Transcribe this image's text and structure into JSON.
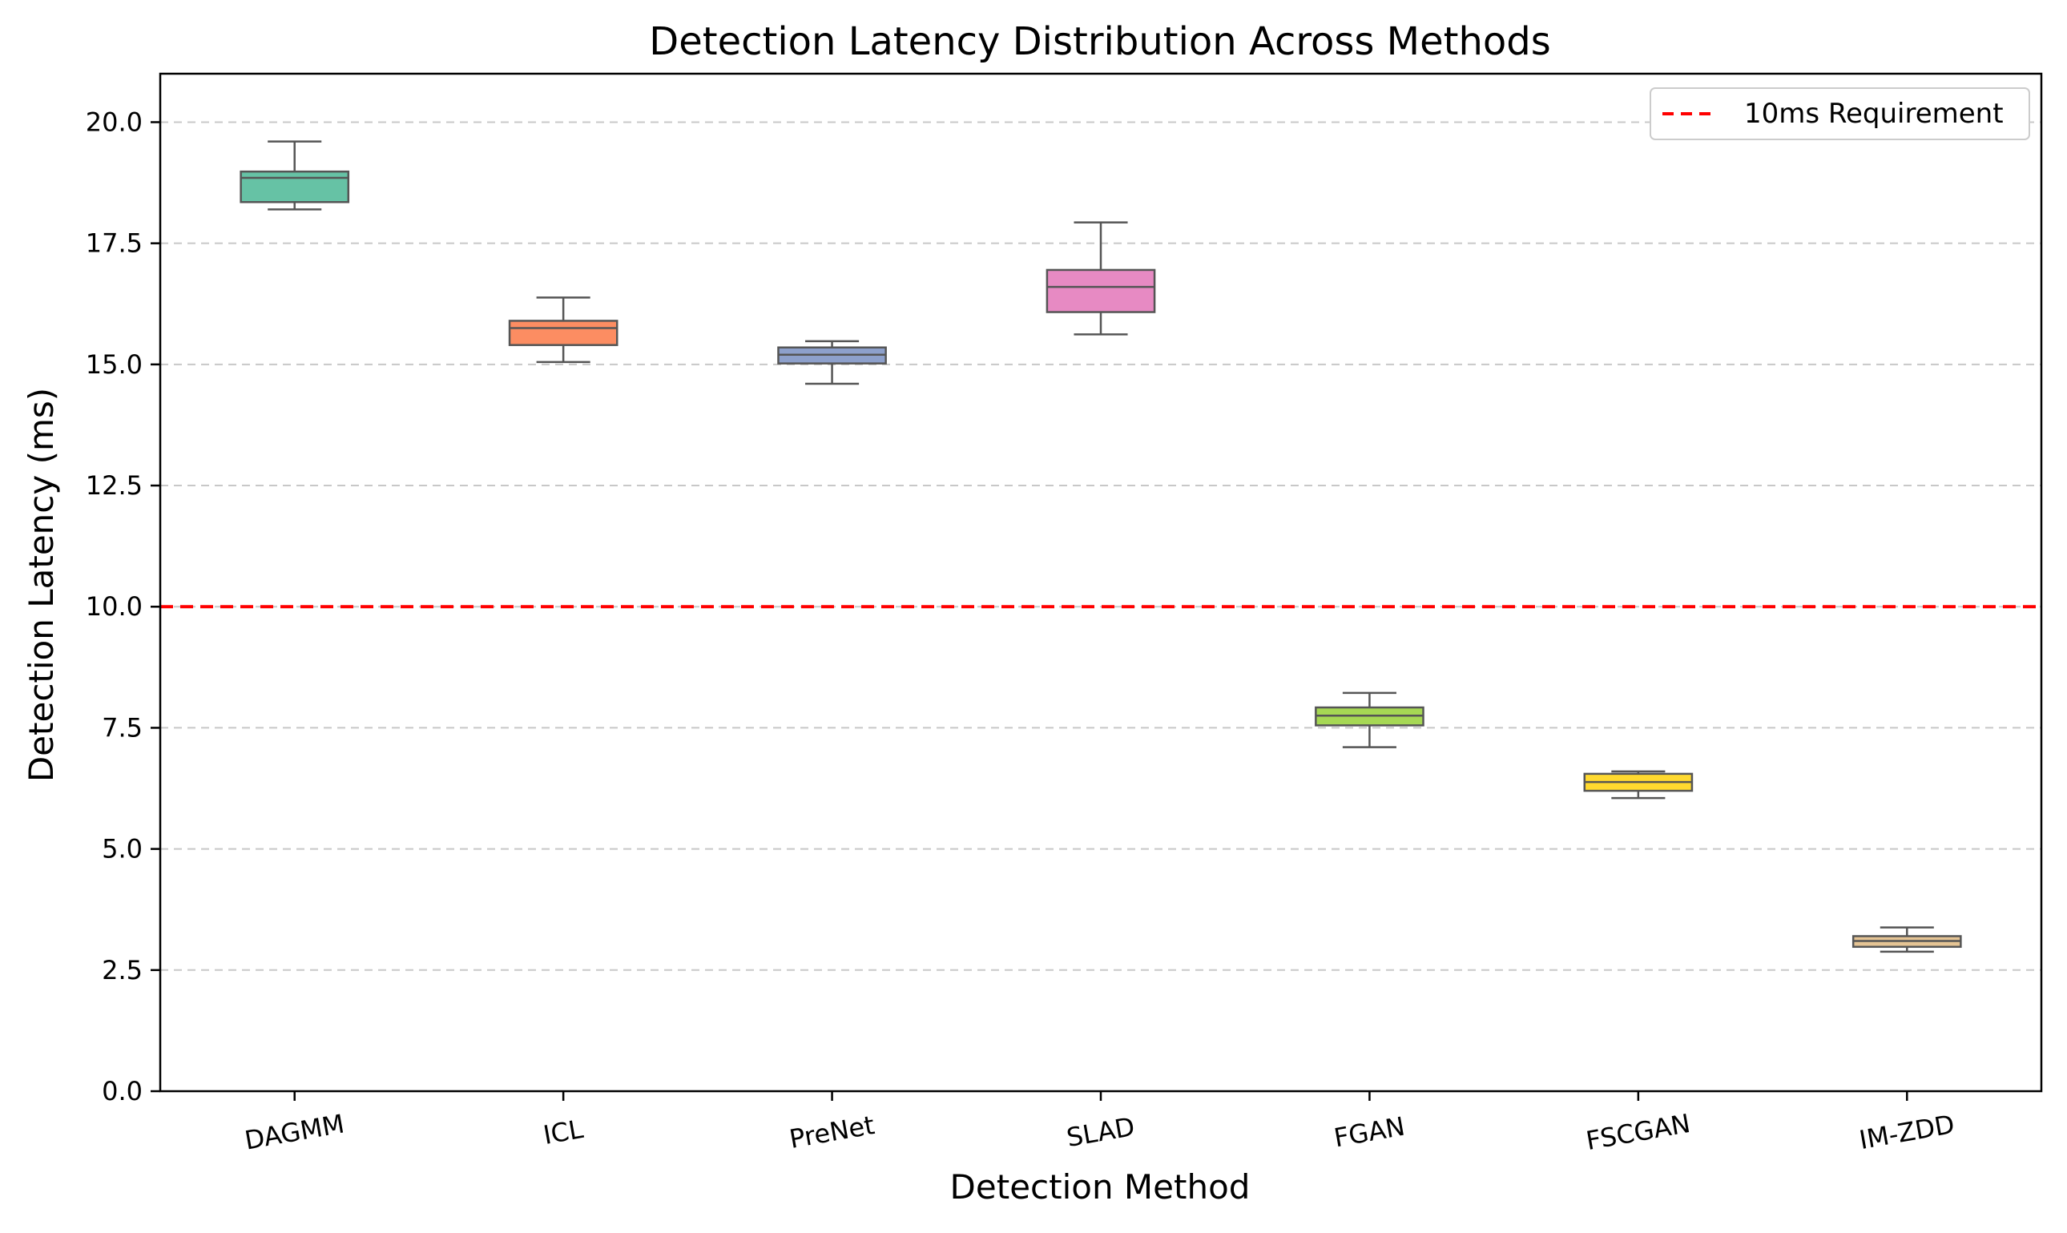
{
  "chart_data": {
    "type": "boxplot",
    "title": "Detection Latency Distribution Across Methods",
    "xlabel": "Detection Method",
    "ylabel": "Detection Latency (ms)",
    "ylim": [
      0,
      21
    ],
    "yticks": [
      "0.0",
      "2.5",
      "5.0",
      "7.5",
      "10.0",
      "12.5",
      "15.0",
      "17.5",
      "20.0"
    ],
    "grid": "y-dashed",
    "legend_position": "top-right",
    "reference_line": {
      "value": 10.0,
      "label": "10ms Requirement",
      "color": "#ff0000",
      "style": "dashed"
    },
    "categories": [
      "DAGMM",
      "ICL",
      "PreNet",
      "SLAD",
      "FGAN",
      "FSCGAN",
      "IM-ZDD"
    ],
    "boxes": [
      {
        "name": "DAGMM",
        "whislo": 18.2,
        "q1": 18.35,
        "med": 18.85,
        "q3": 18.98,
        "whishi": 19.6,
        "color": "#66c2a5"
      },
      {
        "name": "ICL",
        "whislo": 15.05,
        "q1": 15.4,
        "med": 15.75,
        "q3": 15.9,
        "whishi": 16.38,
        "color": "#fc8d62"
      },
      {
        "name": "PreNet",
        "whislo": 14.6,
        "q1": 15.02,
        "med": 15.2,
        "q3": 15.35,
        "whishi": 15.48,
        "color": "#8da0cb"
      },
      {
        "name": "SLAD",
        "whislo": 15.62,
        "q1": 16.08,
        "med": 16.6,
        "q3": 16.95,
        "whishi": 17.93,
        "color": "#e78ac3"
      },
      {
        "name": "FGAN",
        "whislo": 7.1,
        "q1": 7.55,
        "med": 7.75,
        "q3": 7.92,
        "whishi": 8.22,
        "color": "#a6d854"
      },
      {
        "name": "FSCGAN",
        "whislo": 6.05,
        "q1": 6.2,
        "med": 6.38,
        "q3": 6.55,
        "whishi": 6.6,
        "color": "#ffd92f"
      },
      {
        "name": "IM-ZDD",
        "whislo": 2.88,
        "q1": 2.98,
        "med": 3.1,
        "q3": 3.2,
        "whishi": 3.38,
        "color": "#e5c494"
      }
    ]
  }
}
